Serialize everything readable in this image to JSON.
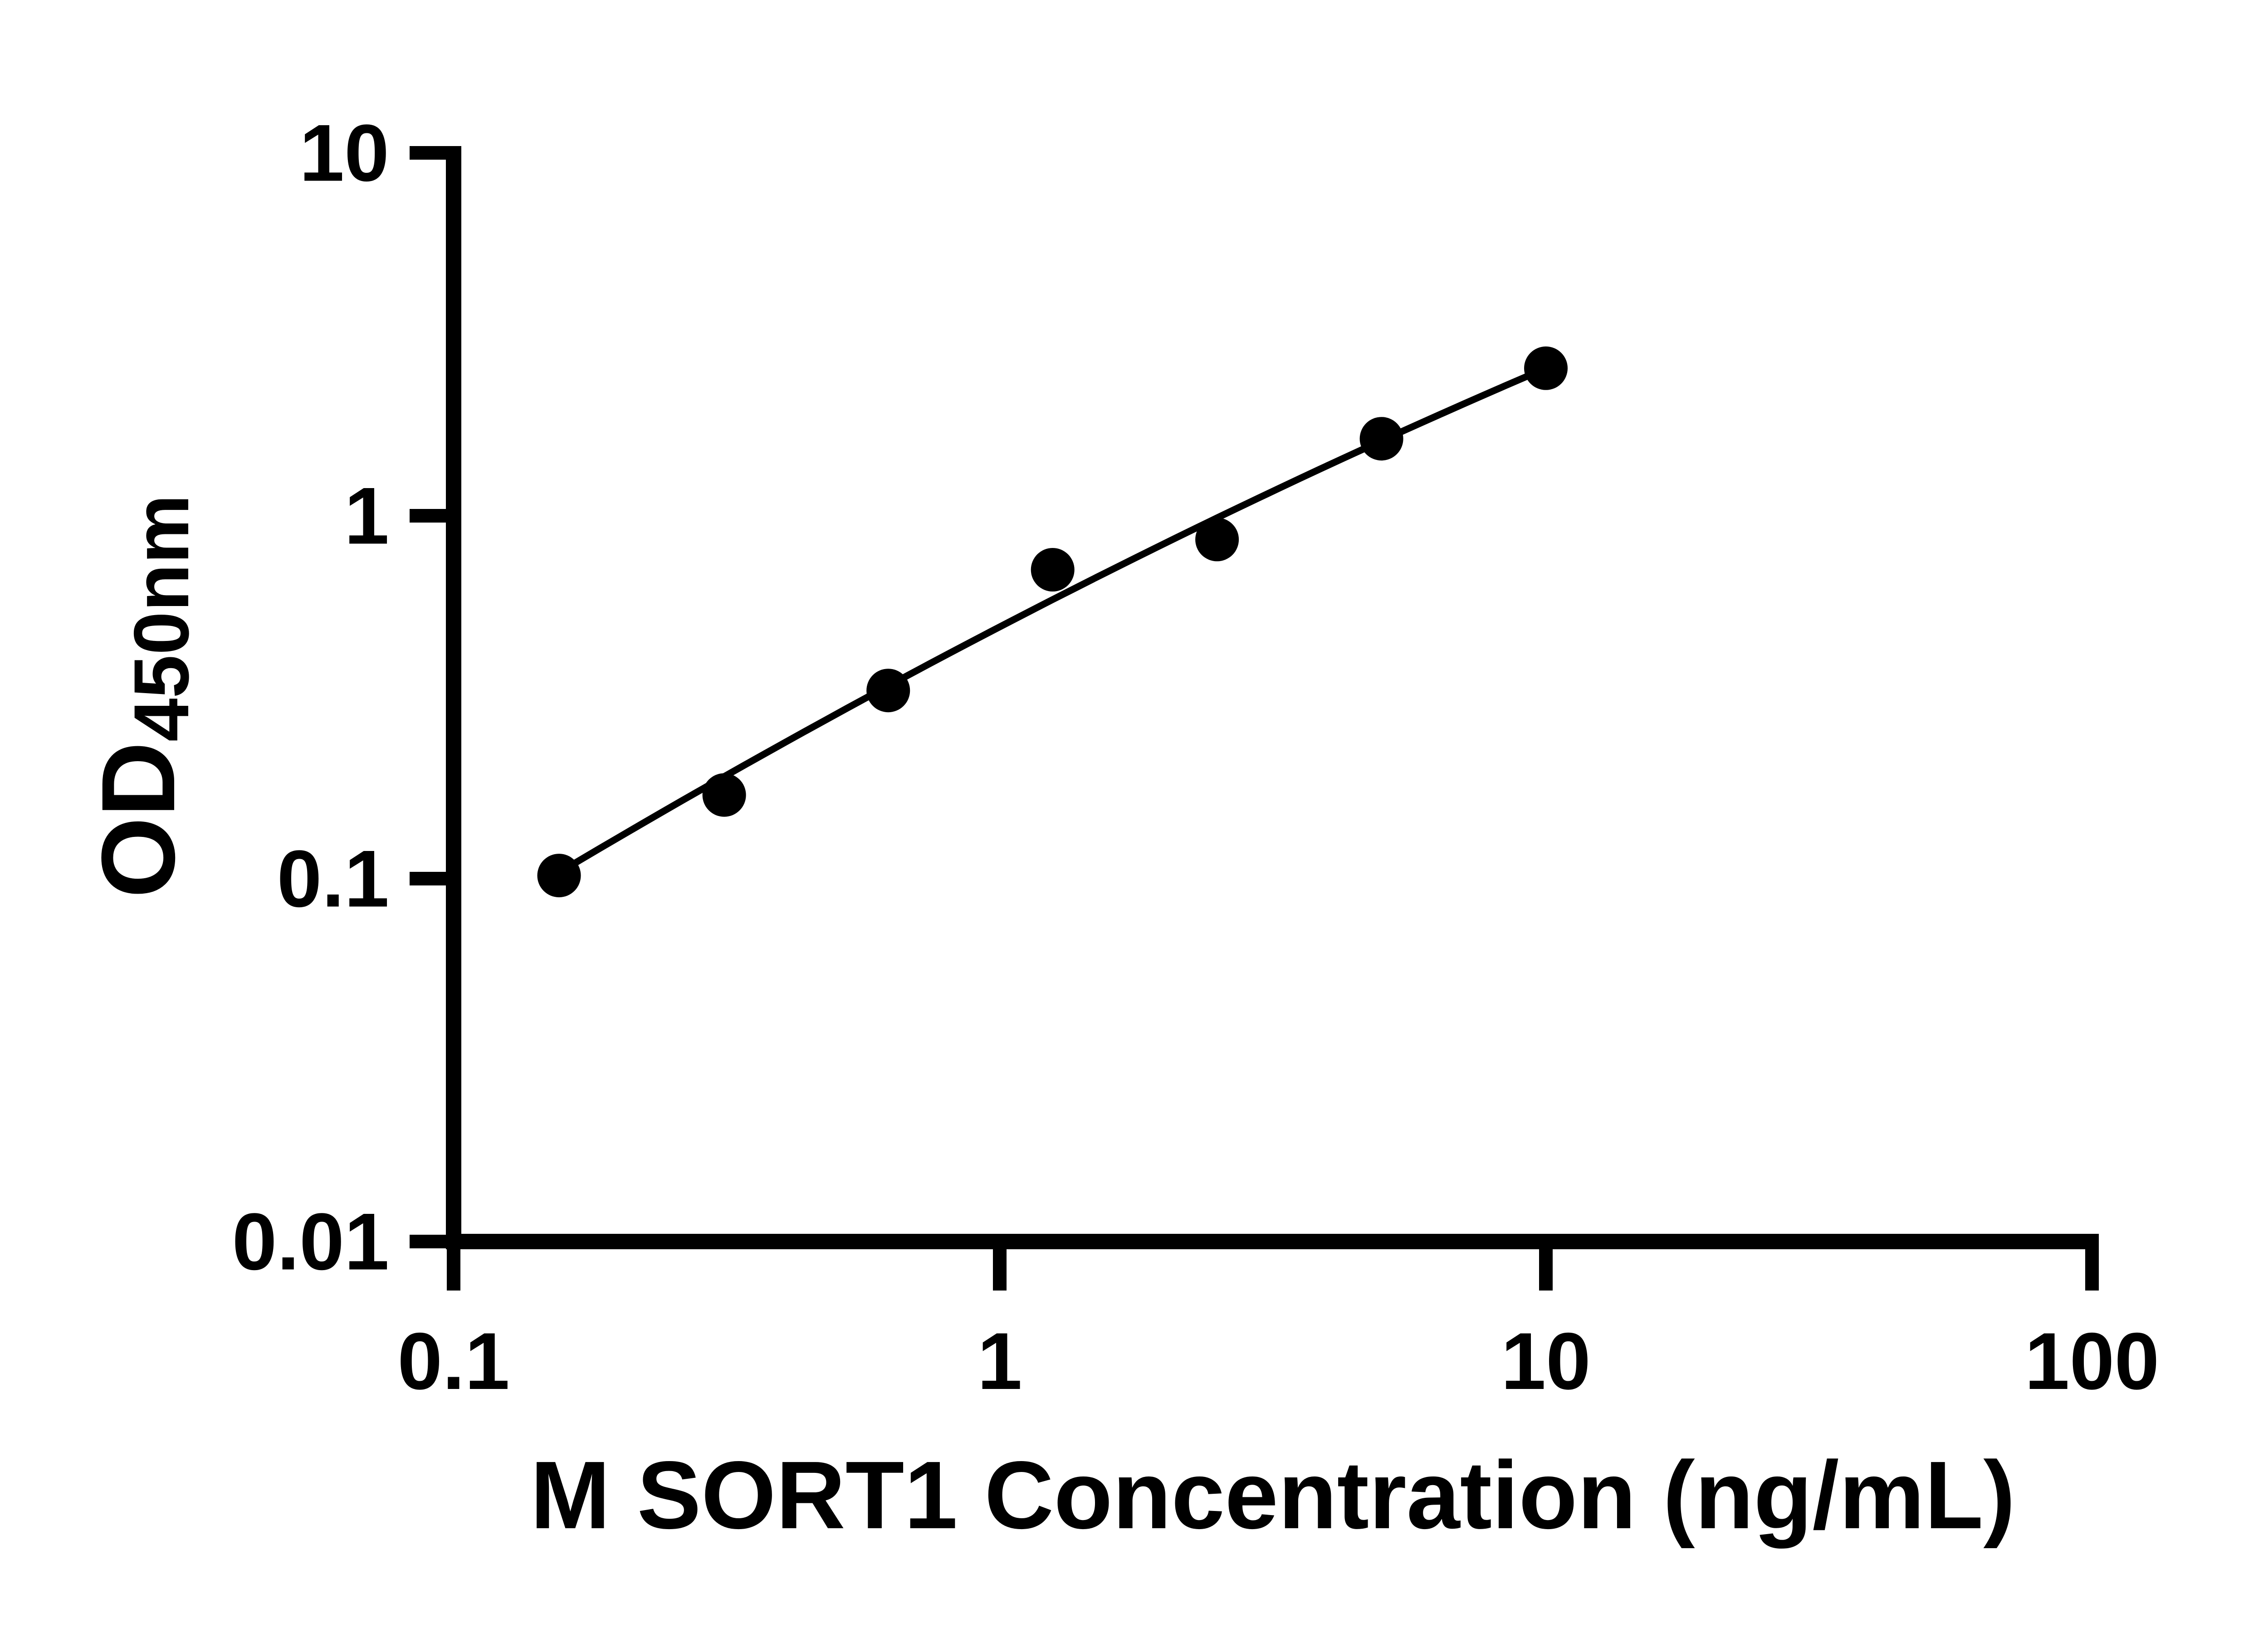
{
  "figure": {
    "background_color": "#ffffff",
    "ink_color": "#000000"
  },
  "y_title": {
    "main": "OD",
    "sub": "450nm"
  },
  "chart_data": {
    "type": "scatter",
    "title": "",
    "xlabel": "M SORT1 Concentration (ng/mL)",
    "ylabel": "OD450nm",
    "x_scale": "log",
    "y_scale": "log",
    "xlim": [
      0.1,
      100
    ],
    "ylim": [
      0.01,
      10
    ],
    "grid": false,
    "legend": "none",
    "x_tick_values": [
      0.1,
      1,
      10,
      100
    ],
    "x_tick_labels": [
      "0.1",
      "1",
      "10",
      "100"
    ],
    "y_tick_values": [
      0.01,
      0.1,
      1,
      10
    ],
    "y_tick_labels": [
      "0.01",
      "0.1",
      "1",
      "10"
    ],
    "series": [
      {
        "name": "standard-curve-points",
        "marker": "circle",
        "color": "#000000",
        "points": [
          {
            "conc_ng_ml": 0.156,
            "od": 0.102
          },
          {
            "conc_ng_ml": 0.313,
            "od": 0.17
          },
          {
            "conc_ng_ml": 0.625,
            "od": 0.33
          },
          {
            "conc_ng_ml": 1.25,
            "od": 0.71
          },
          {
            "conc_ng_ml": 2.5,
            "od": 0.86
          },
          {
            "conc_ng_ml": 5,
            "od": 1.63
          },
          {
            "conc_ng_ml": 10,
            "od": 2.55
          }
        ]
      }
    ],
    "fit_line": {
      "model": "log10(OD) = a + b*u + c*u^2, u = log10(conc)",
      "a": -0.3062,
      "b": 0.7825,
      "c": -0.0698,
      "log10_conc_range": [
        -0.8069,
        1.0
      ]
    }
  }
}
